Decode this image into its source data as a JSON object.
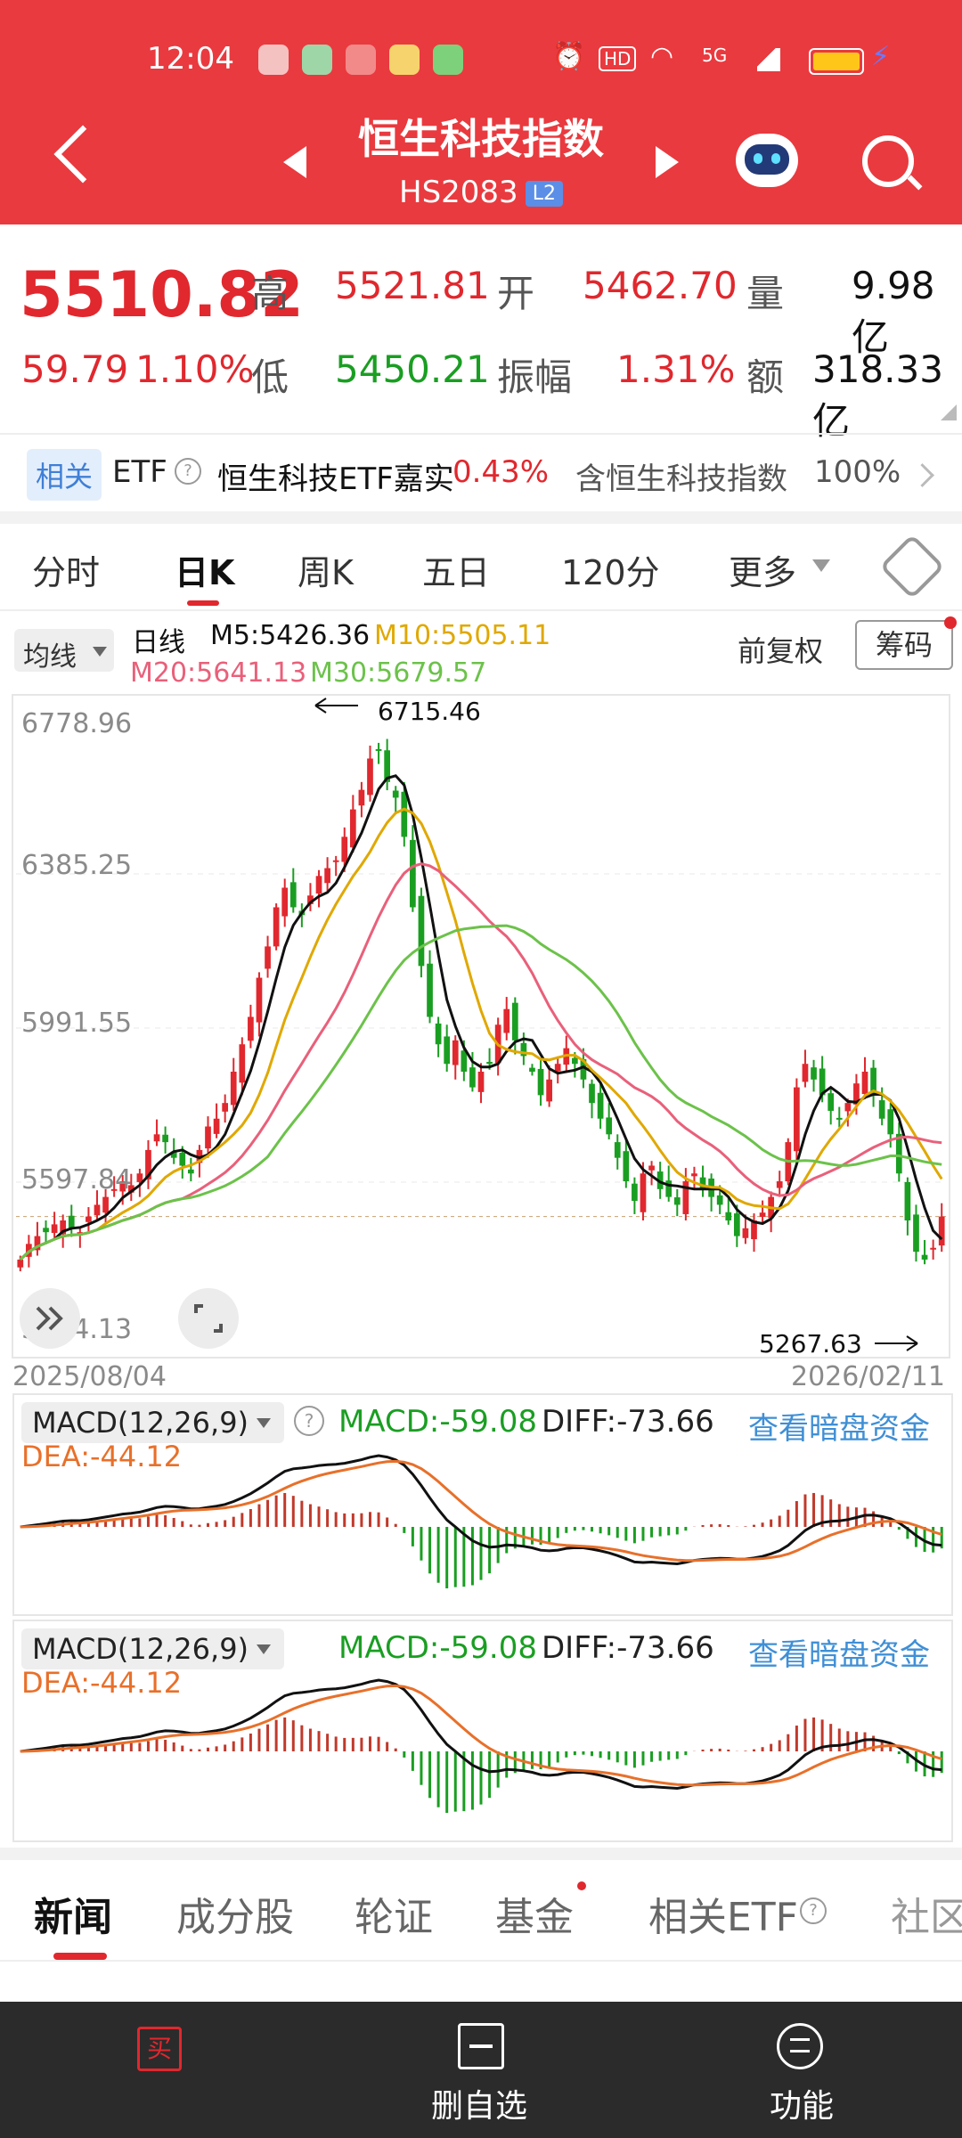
{
  "status_bar": {
    "time": "12:04",
    "signal_5g": "5G",
    "hd": "HD"
  },
  "header": {
    "title": "恒生科技指数",
    "code": "HS2083",
    "level_badge": "L2"
  },
  "quote": {
    "price": "5510.82",
    "change": "59.79",
    "change_pct": "1.10%",
    "high_label": "高",
    "high": "5521.81",
    "open_label": "开",
    "open": "5462.70",
    "volume_label": "量",
    "volume": "9.98亿",
    "low_label": "低",
    "low": "5450.21",
    "amp_label": "振幅",
    "amp": "1.31%",
    "amount_label": "额",
    "amount": "318.33亿"
  },
  "related": {
    "tag": "相关",
    "etf_label": "ETF",
    "etf_name": "恒生科技ETF嘉实",
    "etf_change": "0.43%",
    "holding_text": "含恒生科技指数",
    "holding_pct": "100%"
  },
  "period_tabs": [
    "分时",
    "日K",
    "周K",
    "五日",
    "120分",
    "更多"
  ],
  "ma_bar": {
    "ma_select": "均线",
    "period": "日线",
    "m5": "M5:5426.36",
    "m10": "M10:5505.11",
    "m20": "M20:5641.13",
    "m30": "M30:5679.57",
    "adjust": "前复权",
    "chips": "筹码"
  },
  "kline": {
    "y_ticks": [
      "6778.96",
      "6385.25",
      "5991.55",
      "5597.84",
      "5204.13"
    ],
    "max_label": "6715.46",
    "min_label": "5267.63",
    "date_start": "2025/08/04",
    "date_end": "2026/02/11"
  },
  "macd1": {
    "select": "MACD(12,26,9)",
    "macd": "MACD:-59.08",
    "diff": "DIFF:-73.66",
    "dea": "DEA:-44.12",
    "link": "查看暗盘资金"
  },
  "macd2": {
    "select": "MACD(12,26,9)",
    "macd": "MACD:-59.08",
    "diff": "DIFF:-73.66",
    "dea": "DEA:-44.12",
    "link": "查看暗盘资金"
  },
  "news_tabs": [
    "新闻",
    "成分股",
    "轮证",
    "基金",
    "相关ETF",
    "社区"
  ],
  "bottom_bar": {
    "buy": "买",
    "watch_remove": "删自选",
    "functions": "功能"
  },
  "colors": {
    "header_red": "#e93a3f",
    "up": "#e0282e",
    "down": "#1a9e22",
    "ma5": "#111111",
    "ma10": "#e0a800",
    "ma20": "#e9607a",
    "ma30": "#6cc24a",
    "link_blue": "#3f8fd6"
  },
  "chart_data": {
    "type": "candlestick",
    "date_range": [
      "2025/08/04",
      "2026/02/11"
    ],
    "ylim": [
      5204.13,
      6778.96
    ],
    "annotations": [
      {
        "text": "6715.46",
        "kind": "max"
      },
      {
        "text": "5267.63",
        "kind": "min"
      }
    ],
    "close_approx": [
      5400,
      5440,
      5460,
      5470,
      5490,
      5500,
      5480,
      5470,
      5510,
      5540,
      5560,
      5580,
      5600,
      5590,
      5620,
      5680,
      5720,
      5700,
      5660,
      5640,
      5620,
      5680,
      5740,
      5760,
      5800,
      5880,
      5950,
      6020,
      6120,
      6200,
      6300,
      6350,
      6300,
      6280,
      6330,
      6380,
      6400,
      6420,
      6480,
      6550,
      6600,
      6680,
      6700,
      6620,
      6580,
      6480,
      6300,
      6150,
      6020,
      5950,
      5900,
      5960,
      5880,
      5840,
      5880,
      5900,
      6000,
      6040,
      5960,
      5920,
      5880,
      5820,
      5860,
      5900,
      5940,
      5900,
      5860,
      5800,
      5760,
      5720,
      5660,
      5600,
      5550,
      5620,
      5640,
      5580,
      5560,
      5540,
      5600,
      5620,
      5580,
      5560,
      5540,
      5500,
      5460,
      5480,
      5500,
      5520,
      5560,
      5600,
      5700,
      5840,
      5900,
      5860,
      5820,
      5780,
      5760,
      5800,
      5850,
      5880,
      5820,
      5760,
      5720,
      5620,
      5500,
      5420,
      5400,
      5430,
      5510
    ]
  }
}
